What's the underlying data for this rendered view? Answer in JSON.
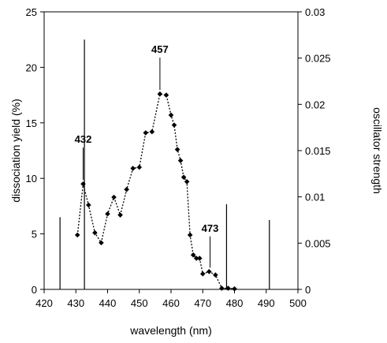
{
  "chart_data": {
    "type": "scatter",
    "xlabel": "wavelength (nm)",
    "ylabel": "dissociation yield (%)",
    "y2label": "oscillator strength",
    "xlim": [
      420,
      500
    ],
    "ylim": [
      0,
      25
    ],
    "y2lim": [
      0,
      0.03
    ],
    "xticks": [
      "420",
      "430",
      "440",
      "450",
      "460",
      "470",
      "480",
      "490",
      "500"
    ],
    "yticks": [
      "0",
      "5",
      "10",
      "15",
      "20",
      "25"
    ],
    "y2ticks": [
      "0",
      "0.005",
      "0.01",
      "0.015",
      "0.02",
      "0.025",
      "0.03"
    ],
    "grid": false,
    "series": [
      {
        "style": "dotted line with diamond markers",
        "color": "#000000",
        "x": [
          430.5,
          432.3,
          434,
          436,
          438,
          440,
          442,
          444,
          446,
          448,
          450,
          452,
          454,
          456.5,
          458.5,
          460,
          461,
          462,
          463,
          464,
          465,
          466,
          467,
          468,
          469,
          470,
          472,
          474,
          476,
          478,
          480
        ],
        "y": [
          4.9,
          9.5,
          7.6,
          5.1,
          4.2,
          6.8,
          8.3,
          6.7,
          9.0,
          10.9,
          11.0,
          14.1,
          14.2,
          17.6,
          17.5,
          15.7,
          14.8,
          12.6,
          11.6,
          10.1,
          9.7,
          4.9,
          3.1,
          2.8,
          2.8,
          1.4,
          1.6,
          1.3,
          0.1,
          0.1,
          0.05
        ]
      }
    ],
    "oscillator_strength": {
      "style": "vertical stick lines on right axis",
      "color": "#000000",
      "x": [
        425,
        432.7,
        477.5,
        491
      ],
      "y": [
        0.0078,
        0.027,
        0.0092,
        0.0075
      ]
    },
    "annotations": [
      {
        "text": "432",
        "x": 432.3,
        "y": 9.5,
        "label_y": 13.2
      },
      {
        "text": "457",
        "x": 456.5,
        "y": 17.6,
        "label_y": 21.3
      },
      {
        "text": "473",
        "x": 472.3,
        "y": 1.6,
        "label_y": 5.2
      }
    ]
  }
}
